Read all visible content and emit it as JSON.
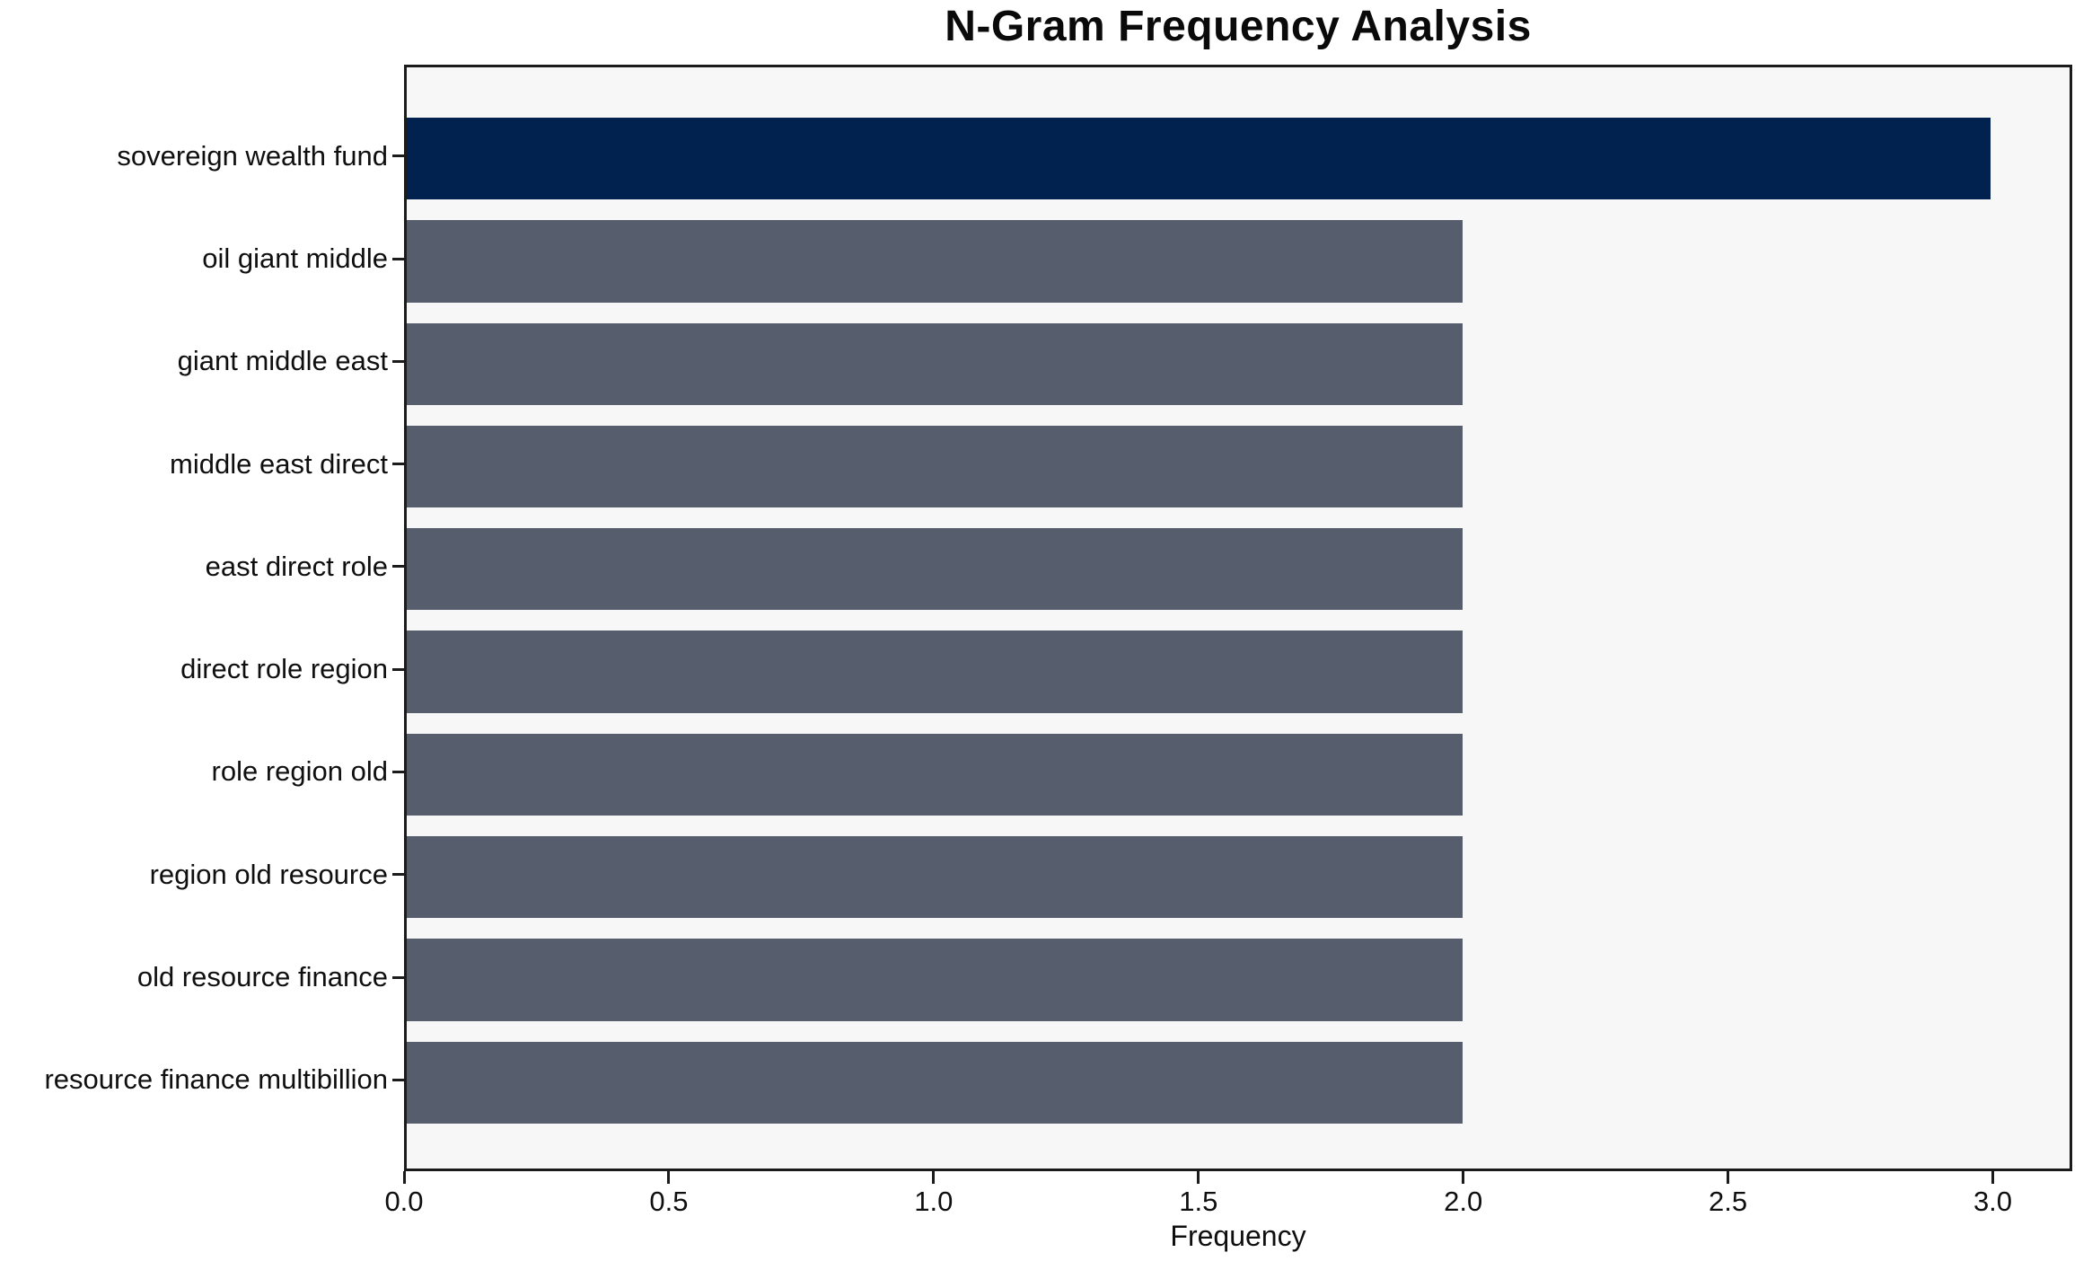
{
  "chart_data": {
    "type": "bar",
    "orientation": "horizontal",
    "title": "N-Gram Frequency Analysis",
    "xlabel": "Frequency",
    "ylabel": "",
    "categories": [
      "sovereign wealth fund",
      "oil giant middle",
      "giant middle east",
      "middle east direct",
      "east direct role",
      "direct role region",
      "role region old",
      "region old resource",
      "old resource finance",
      "resource finance multibillion"
    ],
    "values": [
      3,
      2,
      2,
      2,
      2,
      2,
      2,
      2,
      2,
      2
    ],
    "xlim": [
      0,
      3.15
    ],
    "xticks": [
      0.0,
      0.5,
      1.0,
      1.5,
      2.0,
      2.5,
      3.0
    ],
    "xtick_labels": [
      "0.0",
      "0.5",
      "1.0",
      "1.5",
      "2.0",
      "2.5",
      "3.0"
    ],
    "grid": false,
    "legend": null,
    "colors": {
      "highlight_bar": "#01224e",
      "default_bar": "#565d6c",
      "plot_background": "#f7f7f8",
      "spine": "#1b1b1b",
      "text": "#0f0f0f"
    },
    "highlight_index": 0
  }
}
